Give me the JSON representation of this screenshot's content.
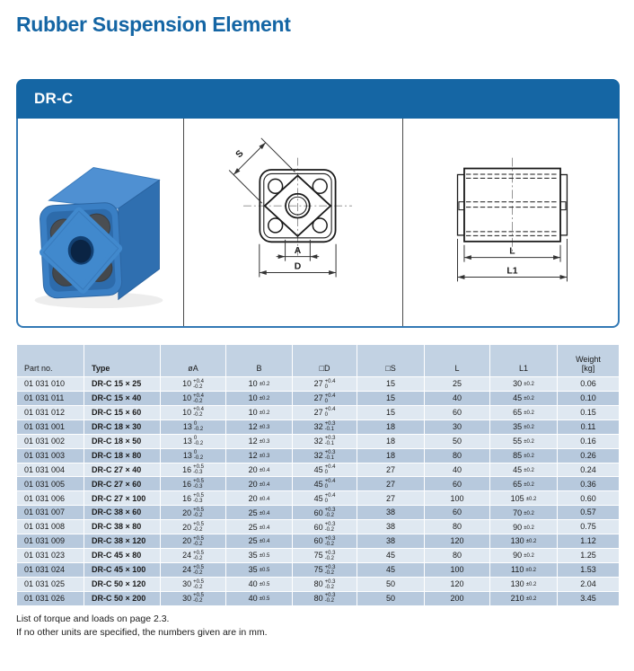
{
  "page": {
    "title": "Rubber Suspension Element",
    "footer_line1": "List of torque and loads on page 2.3.",
    "footer_line2": "If no other units are specified, the numbers given are in mm."
  },
  "panel": {
    "header": "DR-C",
    "drawing_labels": {
      "s": "S",
      "a": "A",
      "d": "D",
      "l": "L",
      "l1": "L1"
    }
  },
  "colors": {
    "accent_blue": "#1566a4",
    "panel_border": "#3279b5",
    "table_header_bg": "#c2d2e3",
    "row_light": "#dfe8f1",
    "row_dark": "#b7c9dd",
    "product_blue": "#3a7fc4"
  },
  "table": {
    "columns": [
      {
        "key": "part_no",
        "label": "Part no."
      },
      {
        "key": "type",
        "label": "Type"
      },
      {
        "key": "dA",
        "label": "øA"
      },
      {
        "key": "B",
        "label": "B"
      },
      {
        "key": "D",
        "label": "□D"
      },
      {
        "key": "S",
        "label": "□S"
      },
      {
        "key": "L",
        "label": "L"
      },
      {
        "key": "L1",
        "label": "L1"
      },
      {
        "key": "weight",
        "label": "Weight\n[kg]"
      }
    ],
    "rows": [
      {
        "part_no": "01 031 010",
        "type": "DR-C 15 × 25",
        "dA": {
          "v": "10",
          "sup": "+0.4",
          "sub": "-0.2"
        },
        "B": {
          "v": "10",
          "pm": "±0.2"
        },
        "D": {
          "v": "27",
          "sup": "+0.4",
          "sub": "0"
        },
        "S": "15",
        "L": "25",
        "L1": {
          "v": "30",
          "pm": "±0.2"
        },
        "weight": "0.06"
      },
      {
        "part_no": "01 031 011",
        "type": "DR-C 15 × 40",
        "dA": {
          "v": "10",
          "sup": "+0.4",
          "sub": "-0.2"
        },
        "B": {
          "v": "10",
          "pm": "±0.2"
        },
        "D": {
          "v": "27",
          "sup": "+0.4",
          "sub": "0"
        },
        "S": "15",
        "L": "40",
        "L1": {
          "v": "45",
          "pm": "±0.2"
        },
        "weight": "0.10"
      },
      {
        "part_no": "01 031 012",
        "type": "DR-C 15 × 60",
        "dA": {
          "v": "10",
          "sup": "+0.4",
          "sub": "-0.2"
        },
        "B": {
          "v": "10",
          "pm": "±0.2"
        },
        "D": {
          "v": "27",
          "sup": "+0.4",
          "sub": "0"
        },
        "S": "15",
        "L": "60",
        "L1": {
          "v": "65",
          "pm": "±0.2"
        },
        "weight": "0.15"
      },
      {
        "part_no": "01 031 001",
        "type": "DR-C 18 × 30",
        "dA": {
          "v": "13",
          "sup": "0",
          "sub": "-0.2"
        },
        "B": {
          "v": "12",
          "pm": "±0.3"
        },
        "D": {
          "v": "32",
          "sup": "+0.3",
          "sub": "-0.1"
        },
        "S": "18",
        "L": "30",
        "L1": {
          "v": "35",
          "pm": "±0.2"
        },
        "weight": "0.11"
      },
      {
        "part_no": "01 031 002",
        "type": "DR-C 18 × 50",
        "dA": {
          "v": "13",
          "sup": "0",
          "sub": "-0.2"
        },
        "B": {
          "v": "12",
          "pm": "±0.3"
        },
        "D": {
          "v": "32",
          "sup": "+0.3",
          "sub": "-0.1"
        },
        "S": "18",
        "L": "50",
        "L1": {
          "v": "55",
          "pm": "±0.2"
        },
        "weight": "0.16"
      },
      {
        "part_no": "01 031 003",
        "type": "DR-C 18 × 80",
        "dA": {
          "v": "13",
          "sup": "0",
          "sub": "-0.2"
        },
        "B": {
          "v": "12",
          "pm": "±0.3"
        },
        "D": {
          "v": "32",
          "sup": "+0.3",
          "sub": "-0.1"
        },
        "S": "18",
        "L": "80",
        "L1": {
          "v": "85",
          "pm": "±0.2"
        },
        "weight": "0.26"
      },
      {
        "part_no": "01 031 004",
        "type": "DR-C 27 × 40",
        "dA": {
          "v": "16",
          "sup": "+0.5",
          "sub": "-0.3"
        },
        "B": {
          "v": "20",
          "pm": "±0.4"
        },
        "D": {
          "v": "45",
          "sup": "+0.4",
          "sub": "0"
        },
        "S": "27",
        "L": "40",
        "L1": {
          "v": "45",
          "pm": "±0.2"
        },
        "weight": "0.24"
      },
      {
        "part_no": "01 031 005",
        "type": "DR-C 27 × 60",
        "dA": {
          "v": "16",
          "sup": "+0.5",
          "sub": "-0.3"
        },
        "B": {
          "v": "20",
          "pm": "±0.4"
        },
        "D": {
          "v": "45",
          "sup": "+0.4",
          "sub": "0"
        },
        "S": "27",
        "L": "60",
        "L1": {
          "v": "65",
          "pm": "±0.2"
        },
        "weight": "0.36"
      },
      {
        "part_no": "01 031 006",
        "type": "DR-C 27 × 100",
        "dA": {
          "v": "16",
          "sup": "+0.5",
          "sub": "-0.3"
        },
        "B": {
          "v": "20",
          "pm": "±0.4"
        },
        "D": {
          "v": "45",
          "sup": "+0.4",
          "sub": "0"
        },
        "S": "27",
        "L": "100",
        "L1": {
          "v": "105",
          "pm": "±0.2"
        },
        "weight": "0.60"
      },
      {
        "part_no": "01 031 007",
        "type": "DR-C 38 × 60",
        "dA": {
          "v": "20",
          "sup": "+0.5",
          "sub": "-0.2"
        },
        "B": {
          "v": "25",
          "pm": "±0.4"
        },
        "D": {
          "v": "60",
          "sup": "+0.3",
          "sub": "-0.2"
        },
        "S": "38",
        "L": "60",
        "L1": {
          "v": "70",
          "pm": "±0.2"
        },
        "weight": "0.57"
      },
      {
        "part_no": "01 031 008",
        "type": "DR-C 38 × 80",
        "dA": {
          "v": "20",
          "sup": "+0.5",
          "sub": "-0.2"
        },
        "B": {
          "v": "25",
          "pm": "±0.4"
        },
        "D": {
          "v": "60",
          "sup": "+0.3",
          "sub": "-0.2"
        },
        "S": "38",
        "L": "80",
        "L1": {
          "v": "90",
          "pm": "±0.2"
        },
        "weight": "0.75"
      },
      {
        "part_no": "01 031 009",
        "type": "DR-C 38 × 120",
        "dA": {
          "v": "20",
          "sup": "+0.5",
          "sub": "-0.2"
        },
        "B": {
          "v": "25",
          "pm": "±0.4"
        },
        "D": {
          "v": "60",
          "sup": "+0.3",
          "sub": "-0.2"
        },
        "S": "38",
        "L": "120",
        "L1": {
          "v": "130",
          "pm": "±0.2"
        },
        "weight": "1.12"
      },
      {
        "part_no": "01 031 023",
        "type": "DR-C 45 × 80",
        "dA": {
          "v": "24",
          "sup": "+0.5",
          "sub": "-0.2"
        },
        "B": {
          "v": "35",
          "pm": "±0.5"
        },
        "D": {
          "v": "75",
          "sup": "+0.3",
          "sub": "-0.2"
        },
        "S": "45",
        "L": "80",
        "L1": {
          "v": "90",
          "pm": "±0.2"
        },
        "weight": "1.25"
      },
      {
        "part_no": "01 031 024",
        "type": "DR-C 45 × 100",
        "dA": {
          "v": "24",
          "sup": "+0.5",
          "sub": "-0.2"
        },
        "B": {
          "v": "35",
          "pm": "±0.5"
        },
        "D": {
          "v": "75",
          "sup": "+0.3",
          "sub": "-0.2"
        },
        "S": "45",
        "L": "100",
        "L1": {
          "v": "110",
          "pm": "±0.2"
        },
        "weight": "1.53"
      },
      {
        "part_no": "01 031 025",
        "type": "DR-C 50 × 120",
        "dA": {
          "v": "30",
          "sup": "+0.5",
          "sub": "-0.2"
        },
        "B": {
          "v": "40",
          "pm": "±0.5"
        },
        "D": {
          "v": "80",
          "sup": "+0.3",
          "sub": "-0.2"
        },
        "S": "50",
        "L": "120",
        "L1": {
          "v": "130",
          "pm": "±0.2"
        },
        "weight": "2.04"
      },
      {
        "part_no": "01 031 026",
        "type": "DR-C 50 × 200",
        "dA": {
          "v": "30",
          "sup": "+0.5",
          "sub": "-0.2"
        },
        "B": {
          "v": "40",
          "pm": "±0.5"
        },
        "D": {
          "v": "80",
          "sup": "+0.3",
          "sub": "-0.2"
        },
        "S": "50",
        "L": "200",
        "L1": {
          "v": "210",
          "pm": "±0.2"
        },
        "weight": "3.45"
      }
    ]
  }
}
